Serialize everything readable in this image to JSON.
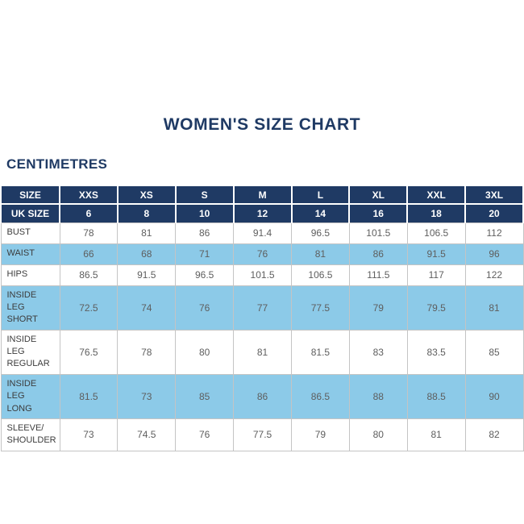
{
  "title": "WOMEN'S SIZE CHART",
  "section_label": "CENTIMETRES",
  "colors": {
    "navy": "#1f3a64",
    "light_blue": "#8ccae8",
    "grid": "#c4c4c4",
    "label_text": "#3c3c3c",
    "value_text": "#5e5e5e",
    "header_text": "#ffffff"
  },
  "chart_data": {
    "type": "table",
    "title": "WOMEN'S SIZE CHART",
    "units": "CENTIMETRES",
    "header_rows": [
      {
        "label": "SIZE",
        "values": [
          "XXS",
          "XS",
          "S",
          "M",
          "L",
          "XL",
          "XXL",
          "3XL"
        ]
      },
      {
        "label": "UK SIZE",
        "values": [
          "6",
          "8",
          "10",
          "12",
          "14",
          "16",
          "18",
          "20"
        ]
      }
    ],
    "body_rows": [
      {
        "label": "BUST",
        "highlight": false,
        "values": [
          "78",
          "81",
          "86",
          "91.4",
          "96.5",
          "101.5",
          "106.5",
          "112"
        ]
      },
      {
        "label": "WAIST",
        "highlight": true,
        "values": [
          "66",
          "68",
          "71",
          "76",
          "81",
          "86",
          "91.5",
          "96"
        ]
      },
      {
        "label": "HIPS",
        "highlight": false,
        "values": [
          "86.5",
          "91.5",
          "96.5",
          "101.5",
          "106.5",
          "111.5",
          "117",
          "122"
        ]
      },
      {
        "label": "INSIDE LEG\nSHORT",
        "highlight": true,
        "values": [
          "72.5",
          "74",
          "76",
          "77",
          "77.5",
          "79",
          "79.5",
          "81"
        ]
      },
      {
        "label": "INSIDE LEG\nREGULAR",
        "highlight": false,
        "values": [
          "76.5",
          "78",
          "80",
          "81",
          "81.5",
          "83",
          "83.5",
          "85"
        ]
      },
      {
        "label": "INSIDE LEG\nLONG",
        "highlight": true,
        "values": [
          "81.5",
          "73",
          "85",
          "86",
          "86.5",
          "88",
          "88.5",
          "90"
        ]
      },
      {
        "label": "SLEEVE/\nSHOULDER",
        "highlight": false,
        "values": [
          "73",
          "74.5",
          "76",
          "77.5",
          "79",
          "80",
          "81",
          "82"
        ]
      }
    ]
  }
}
